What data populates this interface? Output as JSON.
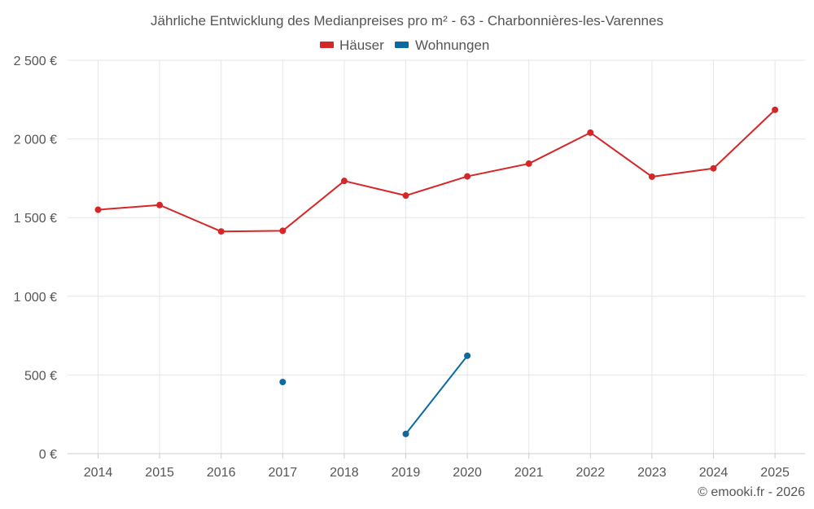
{
  "chart_data": {
    "type": "line",
    "title": "Jährliche Entwicklung des Medianpreises pro m² - 63 - Charbonnières-les-Varennes",
    "categories": [
      "2014",
      "2015",
      "2016",
      "2017",
      "2018",
      "2019",
      "2020",
      "2021",
      "2022",
      "2023",
      "2024",
      "2025"
    ],
    "series": [
      {
        "name": "Häuser",
        "color": "#d62728",
        "values": [
          1550,
          1580,
          1412,
          1416,
          1733,
          1640,
          1762,
          1843,
          2040,
          1760,
          1813,
          2185
        ]
      },
      {
        "name": "Wohnungen",
        "color": "#0b6aa2",
        "values": [
          null,
          null,
          null,
          455,
          null,
          125,
          622,
          null,
          null,
          null,
          null,
          null
        ]
      }
    ],
    "y_ticks": [
      {
        "value": 0,
        "label": "0 €"
      },
      {
        "value": 500,
        "label": "500 €"
      },
      {
        "value": 1000,
        "label": "1 000 €"
      },
      {
        "value": 1500,
        "label": "1 500 €"
      },
      {
        "value": 2000,
        "label": "2 000 €"
      },
      {
        "value": 2500,
        "label": "2 500 €"
      }
    ],
    "ylim": [
      0,
      2500
    ],
    "legend_position": "top-center",
    "grid": true
  },
  "credit": "© emooki.fr - 2026"
}
